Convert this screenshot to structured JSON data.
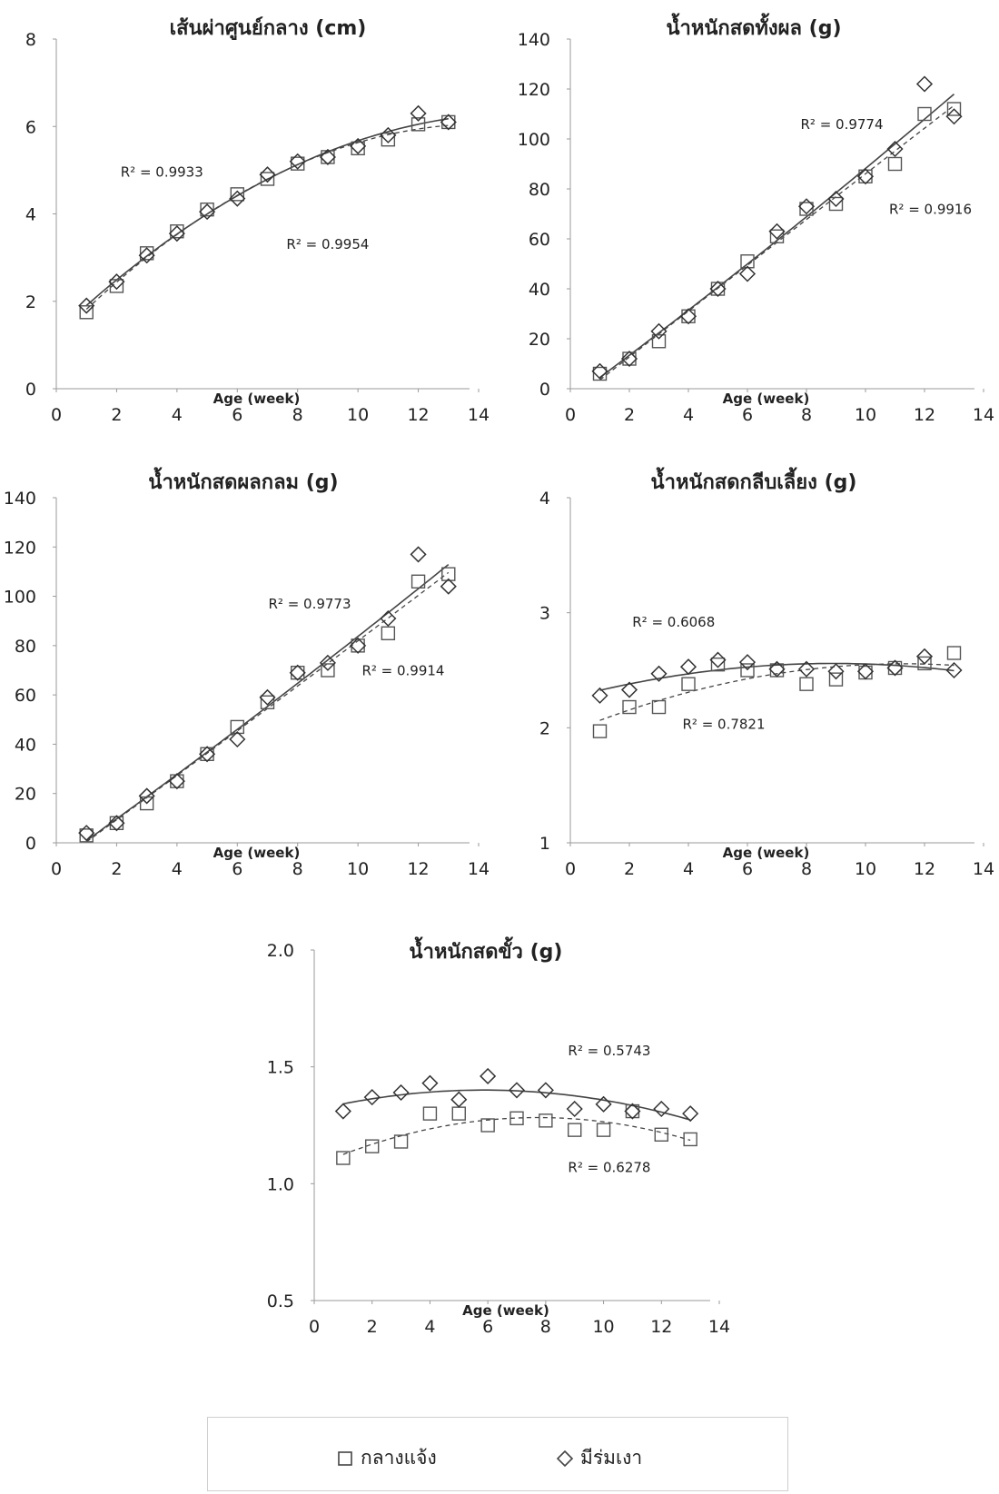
{
  "colors": {
    "series_a": "#444444",
    "series_b": "#444444",
    "axis": "#9a9a9a",
    "text": "#222222"
  },
  "legend": {
    "series_a": {
      "label": "กลางแจ้ง",
      "marker": "square",
      "line": "dashed"
    },
    "series_b": {
      "label": "มีร่มเงา",
      "marker": "diamond",
      "line": "solid"
    }
  },
  "chart_data": [
    {
      "type": "scatter",
      "title": "เส้นผ่าศูนย์กลาง (cm)",
      "xlabel": "Age (week)",
      "ylabel": "",
      "xlim": [
        0,
        14
      ],
      "ylim": [
        0,
        8
      ],
      "xticks": [
        0,
        2,
        4,
        6,
        8,
        10,
        12,
        14
      ],
      "yticks": [
        0,
        2,
        4,
        6,
        8
      ],
      "ytick_labels": [
        "0",
        "2",
        "4",
        "6",
        "8"
      ],
      "x": [
        1,
        2,
        3,
        4,
        5,
        6,
        7,
        8,
        9,
        10,
        11,
        12,
        13
      ],
      "series": [
        {
          "values": [
            1.75,
            2.35,
            3.1,
            3.6,
            4.1,
            4.45,
            4.8,
            5.15,
            5.3,
            5.5,
            5.7,
            6.05,
            6.1
          ]
        },
        {
          "values": [
            1.9,
            2.45,
            3.05,
            3.55,
            4.05,
            4.35,
            4.9,
            5.2,
            5.3,
            5.55,
            5.8,
            6.3,
            6.1
          ]
        }
      ],
      "annotations": [
        {
          "text": "R² = 0.9933",
          "x": 3.5,
          "y": 4.85
        },
        {
          "text": "R² = 0.9954",
          "x": 9.0,
          "y": 3.2
        }
      ]
    },
    {
      "type": "scatter",
      "title": "น้ำหนักสดทั้งผล (g)",
      "xlabel": "Age (week)",
      "ylabel": "",
      "xlim": [
        0,
        14
      ],
      "ylim": [
        0,
        140
      ],
      "xticks": [
        0,
        2,
        4,
        6,
        8,
        10,
        12,
        14
      ],
      "yticks": [
        0,
        20,
        40,
        60,
        80,
        100,
        120,
        140
      ],
      "ytick_labels": [
        "0",
        "20",
        "40",
        "60",
        "80",
        "100",
        "120",
        "140"
      ],
      "x": [
        1,
        2,
        3,
        4,
        5,
        6,
        7,
        8,
        9,
        10,
        11,
        12,
        13
      ],
      "series": [
        {
          "values": [
            6,
            12,
            19,
            29,
            40,
            51,
            61,
            72,
            74,
            85,
            90,
            110,
            112
          ]
        },
        {
          "values": [
            7,
            12,
            23,
            29,
            40,
            46,
            63,
            73,
            76,
            85,
            96,
            122,
            109
          ]
        }
      ],
      "annotations": [
        {
          "text": "R² = 0.9774",
          "x": 9.2,
          "y": 104
        },
        {
          "text": "R² = 0.9916",
          "x": 12.2,
          "y": 70
        }
      ]
    },
    {
      "type": "scatter",
      "title": "น้ำหนักสดผลกลม (g)",
      "xlabel": "Age (week)",
      "ylabel": "",
      "xlim": [
        0,
        14
      ],
      "ylim": [
        0,
        140
      ],
      "xticks": [
        0,
        2,
        4,
        6,
        8,
        10,
        12,
        14
      ],
      "yticks": [
        0,
        20,
        40,
        60,
        80,
        100,
        120,
        140
      ],
      "ytick_labels": [
        "0",
        "20",
        "40",
        "60",
        "80",
        "100",
        "120",
        "140"
      ],
      "x": [
        1,
        2,
        3,
        4,
        5,
        6,
        7,
        8,
        9,
        10,
        11,
        12,
        13
      ],
      "series": [
        {
          "values": [
            3,
            8,
            16,
            25,
            36,
            47,
            57,
            69,
            70,
            80,
            85,
            106,
            109
          ]
        },
        {
          "values": [
            4,
            8,
            19,
            25,
            36,
            42,
            59,
            69,
            73,
            80,
            91,
            117,
            104
          ]
        }
      ],
      "annotations": [
        {
          "text": "R² = 0.9773",
          "x": 8.4,
          "y": 95
        },
        {
          "text": "R² = 0.9914",
          "x": 11.5,
          "y": 68
        }
      ]
    },
    {
      "type": "scatter",
      "title": "น้ำหนักสดกลีบเลี้ยง (g)",
      "xlabel": "Age (week)",
      "ylabel": "",
      "xlim": [
        0,
        14
      ],
      "ylim": [
        1,
        4
      ],
      "xticks": [
        0,
        2,
        4,
        6,
        8,
        10,
        12,
        14
      ],
      "yticks": [
        1,
        2,
        3,
        4
      ],
      "ytick_labels": [
        "1",
        "2",
        "3",
        "4"
      ],
      "x": [
        1,
        2,
        3,
        4,
        5,
        6,
        7,
        8,
        9,
        10,
        11,
        12,
        13
      ],
      "series": [
        {
          "values": [
            1.97,
            2.18,
            2.18,
            2.38,
            2.55,
            2.5,
            2.5,
            2.38,
            2.42,
            2.48,
            2.52,
            2.56,
            2.65
          ]
        },
        {
          "values": [
            2.28,
            2.33,
            2.47,
            2.53,
            2.59,
            2.57,
            2.51,
            2.51,
            2.49,
            2.49,
            2.52,
            2.62,
            2.5
          ]
        }
      ],
      "annotations": [
        {
          "text": "R² = 0.6068",
          "x": 3.5,
          "y": 2.88
        },
        {
          "text": "R² = 0.7821",
          "x": 5.2,
          "y": 1.99
        }
      ]
    },
    {
      "type": "scatter",
      "title": "น้ำหนักสดขั้ว (g)",
      "xlabel": "Age (week)",
      "ylabel": "",
      "xlim": [
        0,
        14
      ],
      "ylim": [
        0.5,
        2.0
      ],
      "xticks": [
        0,
        2,
        4,
        6,
        8,
        10,
        12,
        14
      ],
      "yticks": [
        0.5,
        1.0,
        1.5,
        2.0
      ],
      "ytick_labels": [
        "0.5",
        "1.0",
        "1.5",
        "2.0"
      ],
      "x": [
        1,
        2,
        3,
        4,
        5,
        6,
        7,
        8,
        9,
        10,
        11,
        12,
        13
      ],
      "series": [
        {
          "values": [
            1.11,
            1.16,
            1.18,
            1.3,
            1.3,
            1.25,
            1.28,
            1.27,
            1.23,
            1.23,
            1.31,
            1.21,
            1.19
          ]
        },
        {
          "values": [
            1.31,
            1.37,
            1.39,
            1.43,
            1.36,
            1.46,
            1.4,
            1.4,
            1.32,
            1.34,
            1.31,
            1.32,
            1.3
          ]
        }
      ],
      "annotations": [
        {
          "text": "R² = 0.5743",
          "x": 10.2,
          "y": 1.55
        },
        {
          "text": "R² = 0.6278",
          "x": 10.2,
          "y": 1.05
        }
      ]
    }
  ]
}
